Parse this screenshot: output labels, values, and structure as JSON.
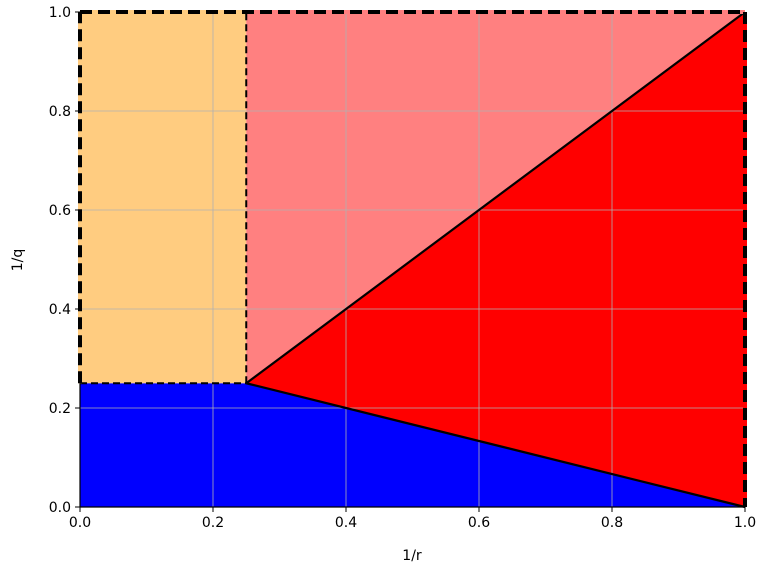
{
  "chart_data": {
    "type": "area",
    "title": "",
    "xlabel": "1/r",
    "ylabel": "1/q",
    "xlim": [
      0,
      1
    ],
    "ylim": [
      0,
      1
    ],
    "x_ticks": [
      "0.0",
      "0.2",
      "0.4",
      "0.6",
      "0.8",
      "1.0"
    ],
    "y_ticks": [
      "0.0",
      "0.2",
      "0.4",
      "0.6",
      "0.8",
      "1.0"
    ],
    "grid": true,
    "regions": [
      {
        "color": "#0000ff",
        "polygon": [
          [
            0,
            0
          ],
          [
            1,
            0
          ],
          [
            0.25,
            0.25
          ],
          [
            0,
            0.25
          ]
        ]
      },
      {
        "color": "#ffcc80",
        "polygon": [
          [
            0,
            0.25
          ],
          [
            0.25,
            0.25
          ],
          [
            0.25,
            1
          ],
          [
            0,
            1
          ]
        ]
      },
      {
        "color": "#ff8080",
        "polygon": [
          [
            0.25,
            0.25
          ],
          [
            1,
            1
          ],
          [
            0.25,
            1
          ]
        ]
      },
      {
        "color": "#ff0000",
        "polygon": [
          [
            0.25,
            0.25
          ],
          [
            1,
            0
          ],
          [
            1,
            1
          ]
        ]
      }
    ],
    "lines": [
      {
        "style": "solid",
        "points": [
          [
            0.25,
            0.25
          ],
          [
            1,
            1
          ]
        ]
      },
      {
        "style": "solid",
        "points": [
          [
            0.25,
            0.25
          ],
          [
            1,
            0
          ]
        ]
      },
      {
        "style": "dashed",
        "points": [
          [
            0,
            0.25
          ],
          [
            0.25,
            0.25
          ]
        ]
      },
      {
        "style": "dashed",
        "points": [
          [
            0.25,
            0.25
          ],
          [
            0.25,
            1
          ]
        ]
      }
    ],
    "dashed_boundary_colors": {
      "left": "#ffcc80",
      "top": "#ff8080",
      "right": "#ff0000"
    }
  }
}
